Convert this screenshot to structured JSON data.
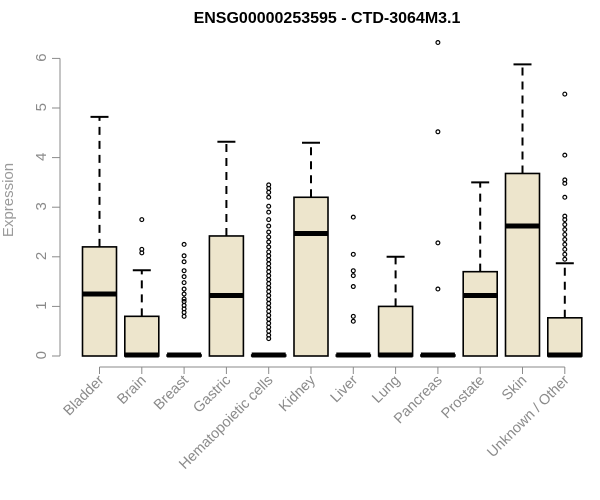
{
  "chart_data": {
    "type": "boxplot",
    "title": "ENSG00000253595 - CTD-3064M3.1",
    "ylabel": "Expression",
    "xlabel": "",
    "ylim": [
      0,
      6.3
    ],
    "yticks": [
      0,
      1,
      2,
      3,
      4,
      5,
      6
    ],
    "box_fill": "#ede5cc",
    "categories": [
      "Bladder",
      "Brain",
      "Breast",
      "Gastric",
      "Hematopoietic cells",
      "Kidney",
      "Liver",
      "Lung",
      "Pancreas",
      "Prostate",
      "Skin",
      "Unknown / Other"
    ],
    "boxes": [
      {
        "q1": 0.0,
        "median": 1.25,
        "q3": 2.2,
        "whisker_low": 0.0,
        "whisker_high": 4.82,
        "outliers": []
      },
      {
        "q1": 0.0,
        "median": 0.02,
        "q3": 0.8,
        "whisker_low": 0.0,
        "whisker_high": 1.73,
        "outliers": [
          2.08,
          2.15,
          2.75
        ]
      },
      {
        "q1": 0.0,
        "median": 0.02,
        "q3": 0.02,
        "whisker_low": 0.0,
        "whisker_high": 0.02,
        "outliers": [
          0.8,
          0.88,
          0.95,
          1.02,
          1.1,
          1.15,
          1.25,
          1.35,
          1.48,
          1.6,
          1.72,
          1.9,
          2.02,
          2.25
        ]
      },
      {
        "q1": 0.0,
        "median": 1.22,
        "q3": 2.42,
        "whisker_low": 0.0,
        "whisker_high": 4.32,
        "outliers": []
      },
      {
        "q1": 0.0,
        "median": 0.02,
        "q3": 0.02,
        "whisker_low": 0.0,
        "whisker_high": 0.02,
        "outliers": [
          0.35,
          0.42,
          0.5,
          0.58,
          0.66,
          0.74,
          0.82,
          0.9,
          0.98,
          1.06,
          1.14,
          1.22,
          1.3,
          1.38,
          1.46,
          1.54,
          1.62,
          1.7,
          1.78,
          1.86,
          1.94,
          2.02,
          2.1,
          2.2,
          2.3,
          2.4,
          2.5,
          2.62,
          2.75,
          2.9,
          3.02,
          3.2,
          3.3,
          3.38,
          3.45
        ]
      },
      {
        "q1": 0.0,
        "median": 2.47,
        "q3": 3.2,
        "whisker_low": 0.0,
        "whisker_high": 4.3,
        "outliers": []
      },
      {
        "q1": 0.0,
        "median": 0.02,
        "q3": 0.02,
        "whisker_low": 0.0,
        "whisker_high": 0.02,
        "outliers": [
          0.7,
          0.8,
          1.4,
          1.62,
          1.72,
          2.05,
          2.8
        ]
      },
      {
        "q1": 0.0,
        "median": 0.02,
        "q3": 1.0,
        "whisker_low": 0.0,
        "whisker_high": 2.0,
        "outliers": []
      },
      {
        "q1": 0.0,
        "median": 0.02,
        "q3": 0.02,
        "whisker_low": 0.0,
        "whisker_high": 0.02,
        "outliers": [
          1.35,
          2.28,
          4.52,
          6.32
        ]
      },
      {
        "q1": 0.0,
        "median": 1.22,
        "q3": 1.7,
        "whisker_low": 0.0,
        "whisker_high": 3.5,
        "outliers": []
      },
      {
        "q1": 0.0,
        "median": 2.62,
        "q3": 3.68,
        "whisker_low": 0.0,
        "whisker_high": 5.88,
        "outliers": []
      },
      {
        "q1": 0.0,
        "median": 0.02,
        "q3": 0.77,
        "whisker_low": 0.0,
        "whisker_high": 1.87,
        "outliers": [
          1.95,
          2.05,
          2.15,
          2.25,
          2.35,
          2.45,
          2.55,
          2.65,
          2.75,
          2.82,
          3.2,
          3.48,
          3.55,
          4.05,
          5.28
        ]
      }
    ]
  }
}
